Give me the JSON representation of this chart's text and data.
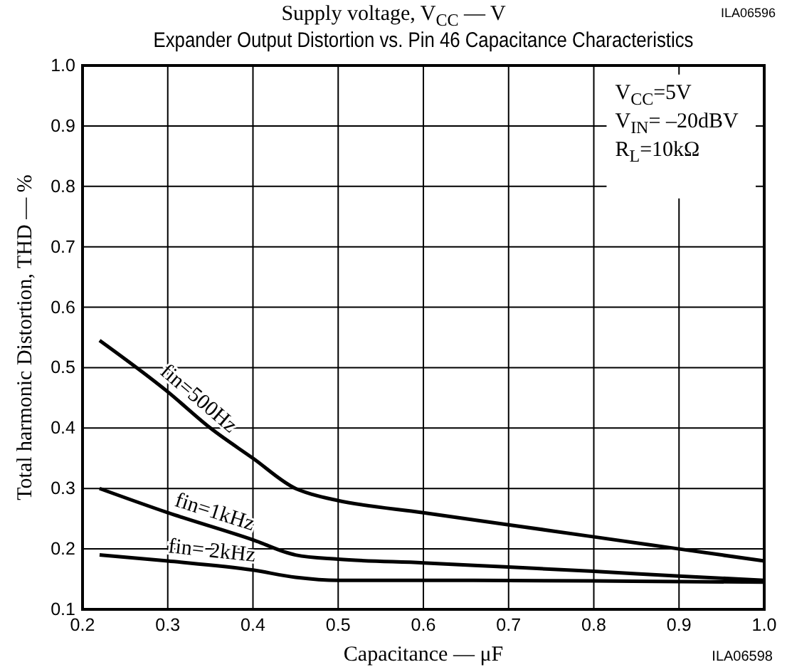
{
  "chart_data": {
    "type": "line",
    "title": "Expander Output Distortion vs. Pin 46 Capacitance Characteristics",
    "xlabel": "Capacitance — μF",
    "ylabel": "Total harmonic Distortion, THD — %",
    "annotations": [
      "Supply voltage, V$_{CC}$ — V",
      "ILA06596",
      "V$_{CC}$=5V",
      "V$_{IN}$= –20dBV",
      "R$_{L}$=10kΩ",
      "ILA06598"
    ],
    "x": [
      0.22,
      0.3,
      0.35,
      0.4,
      0.45,
      0.47,
      0.5,
      0.6,
      0.7,
      0.8,
      0.9,
      1.0
    ],
    "series": [
      {
        "name": "fin=500Hz",
        "color": "#000000",
        "values": [
          0.545,
          0.46,
          0.4,
          0.35,
          0.3,
          0.29,
          0.28,
          0.26,
          0.24,
          0.22,
          0.2,
          0.18
        ]
      },
      {
        "name": "fin=1kHz",
        "color": "#000000",
        "x": [
          0.22,
          0.3,
          0.4,
          0.45,
          0.5,
          0.6,
          0.7,
          0.8,
          0.9,
          1.0
        ],
        "values": [
          0.3,
          0.26,
          0.215,
          0.19,
          0.183,
          0.177,
          0.17,
          0.163,
          0.155,
          0.148
        ]
      },
      {
        "name": "fin= 2kHz",
        "color": "#000000",
        "x": [
          0.22,
          0.3,
          0.4,
          0.45,
          0.5,
          0.6,
          0.8,
          1.0
        ],
        "values": [
          0.19,
          0.18,
          0.165,
          0.153,
          0.148,
          0.148,
          0.147,
          0.145
        ]
      }
    ],
    "xlim": [
      0.2,
      1.0
    ],
    "xticks": [
      0.2,
      0.3,
      0.4,
      0.5,
      0.6,
      0.7,
      0.8,
      0.9,
      {
        "value": 1.0,
        "label": "1.0"
      }
    ],
    "ylim": [
      0.1,
      1.0
    ],
    "yticks": [
      0.1,
      0.2,
      0.3,
      0.4,
      0.5,
      0.6,
      0.7,
      0.8,
      0.9,
      {
        "value": 1.0,
        "label": "1.0"
      }
    ],
    "grid": true,
    "marker": "none",
    "line_style": "solid"
  }
}
